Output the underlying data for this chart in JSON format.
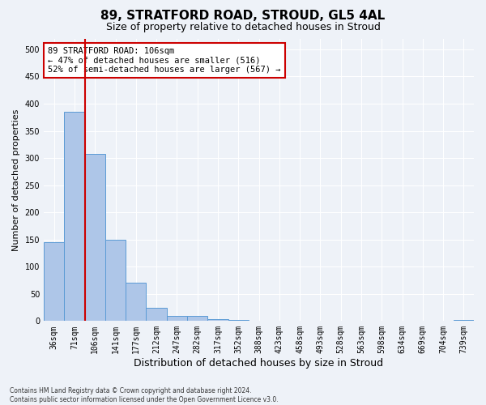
{
  "title": "89, STRATFORD ROAD, STROUD, GL5 4AL",
  "subtitle": "Size of property relative to detached houses in Stroud",
  "xlabel": "Distribution of detached houses by size in Stroud",
  "ylabel": "Number of detached properties",
  "bar_color": "#aec6e8",
  "bar_edge_color": "#5b9bd5",
  "background_color": "#eef2f8",
  "grid_color": "#ffffff",
  "annotation_text": "89 STRATFORD ROAD: 106sqm\n← 47% of detached houses are smaller (516)\n52% of semi-detached houses are larger (567) →",
  "annotation_box_color": "#ffffff",
  "annotation_border_color": "#cc0000",
  "bins": [
    "36sqm",
    "71sqm",
    "106sqm",
    "141sqm",
    "177sqm",
    "212sqm",
    "247sqm",
    "282sqm",
    "317sqm",
    "352sqm",
    "388sqm",
    "423sqm",
    "458sqm",
    "493sqm",
    "528sqm",
    "563sqm",
    "598sqm",
    "634sqm",
    "669sqm",
    "704sqm",
    "739sqm"
  ],
  "values": [
    145,
    385,
    308,
    149,
    71,
    25,
    10,
    9,
    3,
    2,
    0,
    0,
    0,
    0,
    0,
    0,
    0,
    0,
    0,
    0,
    2
  ],
  "ylim": [
    0,
    520
  ],
  "yticks": [
    0,
    50,
    100,
    150,
    200,
    250,
    300,
    350,
    400,
    450,
    500
  ],
  "footer": "Contains HM Land Registry data © Crown copyright and database right 2024.\nContains public sector information licensed under the Open Government Licence v3.0.",
  "title_fontsize": 11,
  "subtitle_fontsize": 9,
  "label_fontsize": 8,
  "tick_fontsize": 7
}
